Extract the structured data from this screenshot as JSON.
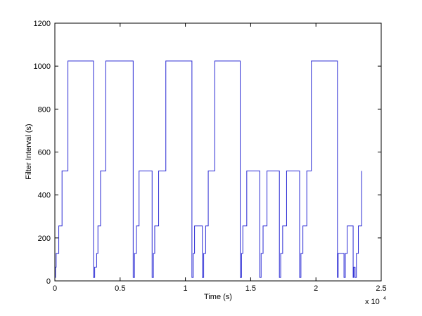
{
  "chart_data": {
    "type": "line",
    "drawstyle": "steps-post",
    "xlabel": "Time (s)",
    "ylabel": "Filter Interval (s)",
    "x_multiplier": "x 10",
    "x_multiplier_exponent": "4",
    "x": [
      0,
      0.005,
      0.01,
      0.03,
      0.055,
      0.1,
      0.296,
      0.305,
      0.32,
      0.33,
      0.35,
      0.39,
      0.6,
      0.61,
      0.625,
      0.645,
      0.745,
      0.755,
      0.765,
      0.795,
      0.85,
      1.05,
      1.06,
      1.07,
      1.13,
      1.14,
      1.155,
      1.175,
      1.225,
      1.42,
      1.43,
      1.44,
      1.47,
      1.57,
      1.58,
      1.595,
      1.625,
      1.72,
      1.73,
      1.745,
      1.775,
      1.875,
      1.885,
      1.9,
      1.93,
      1.965,
      2.165,
      2.17,
      2.215,
      2.225,
      2.24,
      2.285,
      2.29,
      2.3,
      2.31,
      2.325,
      2.35
    ],
    "values": [
      16,
      64,
      128,
      256,
      512,
      1024,
      16,
      64,
      128,
      256,
      512,
      1024,
      16,
      128,
      256,
      512,
      16,
      128,
      256,
      512,
      1024,
      16,
      128,
      256,
      16,
      128,
      256,
      512,
      1024,
      16,
      128,
      256,
      512,
      16,
      128,
      256,
      512,
      16,
      128,
      256,
      512,
      16,
      128,
      256,
      512,
      1024,
      16,
      128,
      16,
      128,
      256,
      16,
      64,
      16,
      128,
      256,
      512
    ],
    "color": "#2a2ad4",
    "xlim": [
      0,
      2.5
    ],
    "xticks": [
      0,
      0.5,
      1,
      1.5,
      2,
      2.5
    ],
    "ylim": [
      0,
      1200
    ],
    "yticks": [
      0,
      200,
      400,
      600,
      800,
      1000,
      1200
    ],
    "grid": false
  }
}
